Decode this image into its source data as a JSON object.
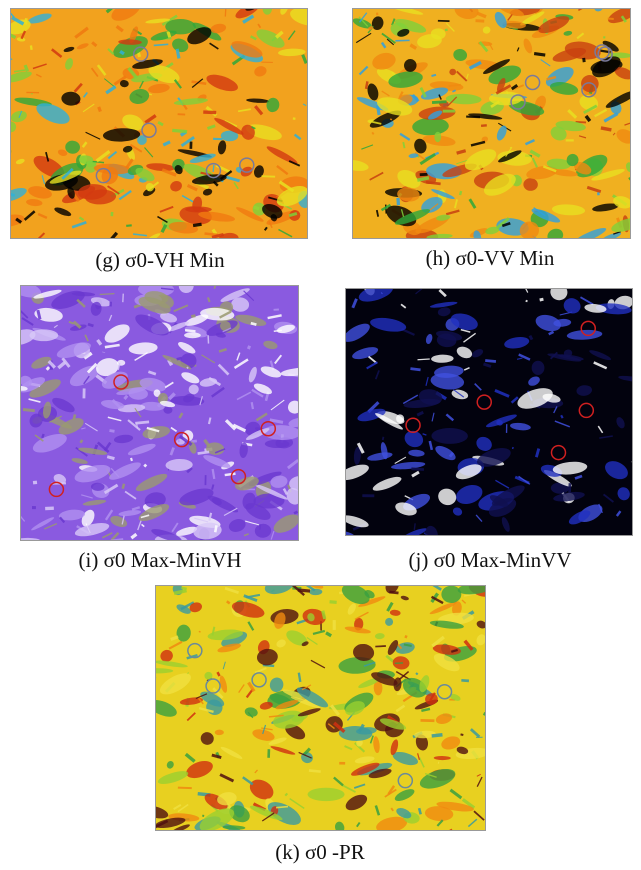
{
  "panels": [
    {
      "id": "g",
      "caption": "(g) σ0-VH Min"
    },
    {
      "id": "h",
      "caption": "(h) σ0-VV Min"
    },
    {
      "id": "i",
      "caption": "(i) σ0 Max-MinVH"
    },
    {
      "id": "j",
      "caption": "(j) σ0 Max-MinVV"
    },
    {
      "id": "k",
      "caption": "(k) σ0 -PR"
    }
  ]
}
